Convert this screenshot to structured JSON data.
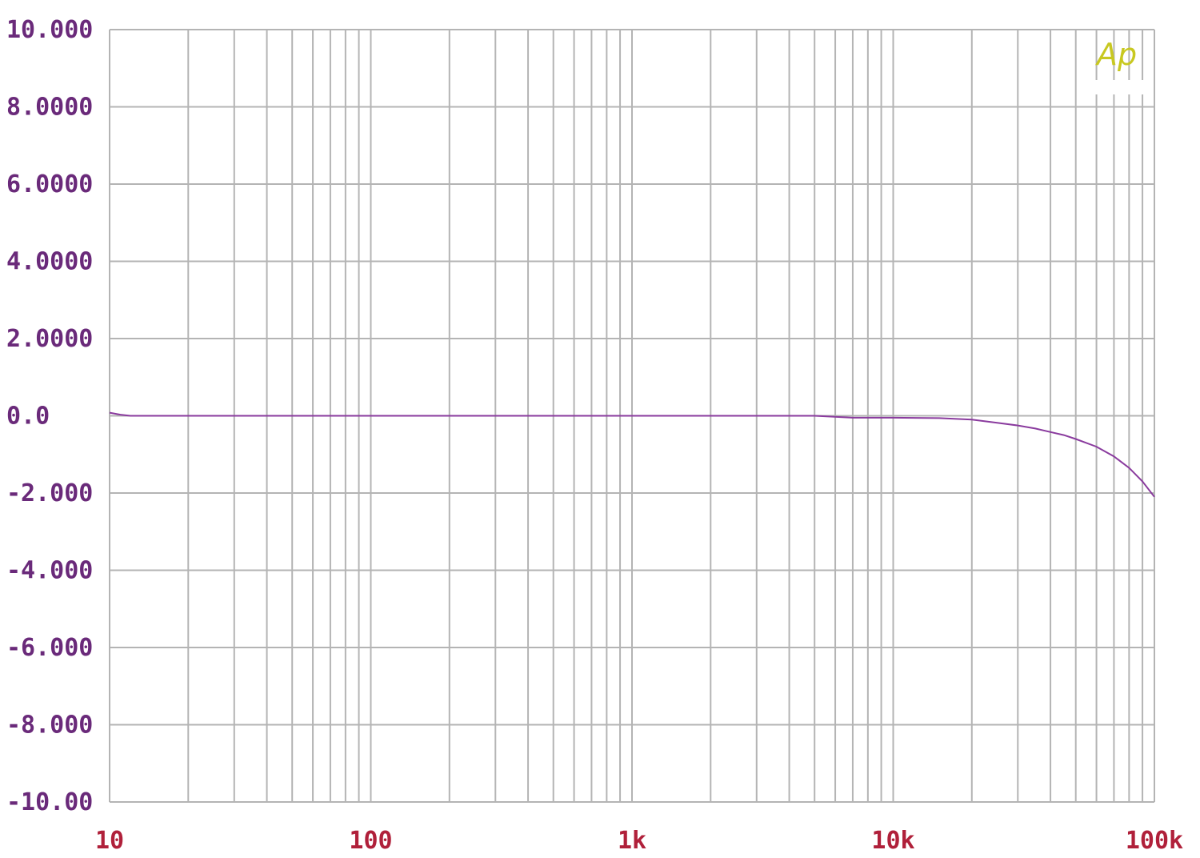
{
  "chart_data": {
    "type": "line",
    "title": "",
    "xlabel": "",
    "ylabel": "",
    "x_scale": "log",
    "xlim": [
      10,
      100000
    ],
    "ylim": [
      -10,
      10
    ],
    "grid": true,
    "x_tick_values": [
      10,
      100,
      1000,
      10000,
      100000
    ],
    "x_tick_labels": [
      "10",
      "100",
      "1k",
      "10k",
      "100k"
    ],
    "y_tick_values": [
      10,
      8,
      6,
      4,
      2,
      0,
      -2,
      -4,
      -6,
      -8,
      -10
    ],
    "y_tick_labels": [
      "10.000",
      "8.0000",
      "6.0000",
      "4.0000",
      "2.0000",
      "0.0",
      "-2.000",
      "-4.000",
      "-6.000",
      "-8.000",
      "-10.00"
    ],
    "series": [
      {
        "color": "#8a3b9e",
        "x": [
          10,
          11,
          12,
          15,
          20,
          50,
          100,
          1000,
          5000,
          7000,
          10000,
          15000,
          20000,
          25000,
          30000,
          35000,
          40000,
          45000,
          50000,
          60000,
          70000,
          80000,
          90000,
          100000
        ],
        "y": [
          0.08,
          0.03,
          0.0,
          0.0,
          0.0,
          0.0,
          0.0,
          0.0,
          0.0,
          -0.05,
          -0.05,
          -0.06,
          -0.1,
          -0.18,
          -0.25,
          -0.33,
          -0.42,
          -0.5,
          -0.6,
          -0.8,
          -1.05,
          -1.35,
          -1.7,
          -2.1
        ]
      }
    ]
  },
  "logo": {
    "text": "Ap",
    "color": "#c8c820"
  },
  "colors": {
    "grid": "#b4b4b4",
    "y_tick_label": "#6a2a7a",
    "x_tick_label": "#b0203a",
    "trace": "#8a3b9e"
  }
}
